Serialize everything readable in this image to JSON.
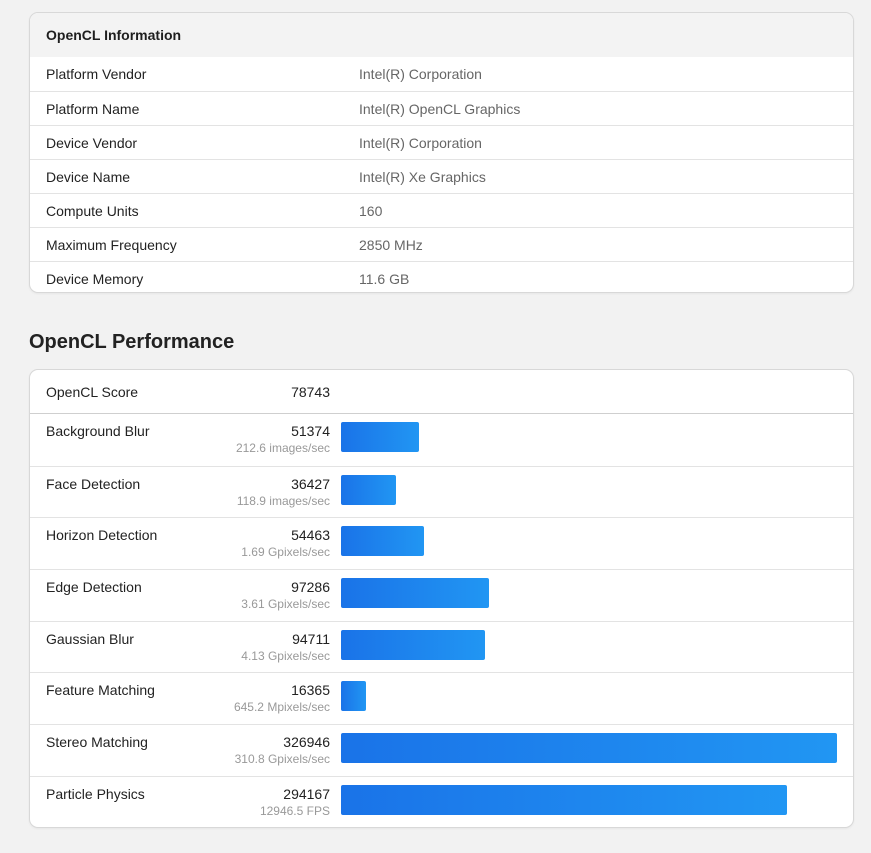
{
  "info": {
    "title": "OpenCL Information",
    "rows": [
      {
        "label": "Platform Vendor",
        "value": "Intel(R) Corporation"
      },
      {
        "label": "Platform Name",
        "value": "Intel(R) OpenCL Graphics"
      },
      {
        "label": "Device Vendor",
        "value": "Intel(R) Corporation"
      },
      {
        "label": "Device Name",
        "value": "Intel(R) Xe Graphics"
      },
      {
        "label": "Compute Units",
        "value": "160"
      },
      {
        "label": "Maximum Frequency",
        "value": "2850 MHz"
      },
      {
        "label": "Device Memory",
        "value": "11.6 GB"
      }
    ]
  },
  "performance": {
    "title": "OpenCL Performance",
    "score_label": "OpenCL Score",
    "score_value": "78743",
    "bar_color": "#1a73e8",
    "max_score": 326946,
    "benchmarks": [
      {
        "name": "Background Blur",
        "score": 51374,
        "unit": "212.6 images/sec"
      },
      {
        "name": "Face Detection",
        "score": 36427,
        "unit": "118.9 images/sec"
      },
      {
        "name": "Horizon Detection",
        "score": 54463,
        "unit": "1.69 Gpixels/sec"
      },
      {
        "name": "Edge Detection",
        "score": 97286,
        "unit": "3.61 Gpixels/sec"
      },
      {
        "name": "Gaussian Blur",
        "score": 94711,
        "unit": "4.13 Gpixels/sec"
      },
      {
        "name": "Feature Matching",
        "score": 16365,
        "unit": "645.2 Mpixels/sec"
      },
      {
        "name": "Stereo Matching",
        "score": 326946,
        "unit": "310.8 Gpixels/sec"
      },
      {
        "name": "Particle Physics",
        "score": 294167,
        "unit": "12946.5 FPS"
      }
    ]
  }
}
